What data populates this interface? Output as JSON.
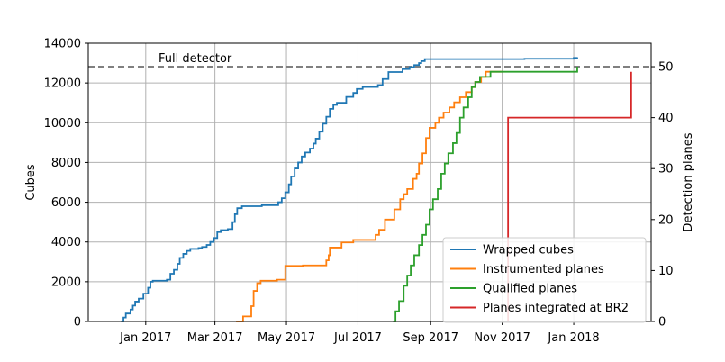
{
  "chart_data": {
    "type": "line",
    "grid": true,
    "legend_placement": "lower-right",
    "x_axis": {
      "type": "date",
      "range": [
        "2016-11-13",
        "2018-03-08"
      ],
      "ticks": [
        {
          "date": "2017-01-01",
          "label": "Jan 2017"
        },
        {
          "date": "2017-03-01",
          "label": "Mar 2017"
        },
        {
          "date": "2017-05-01",
          "label": "May 2017"
        },
        {
          "date": "2017-07-01",
          "label": "Jul 2017"
        },
        {
          "date": "2017-09-01",
          "label": "Sep 2017"
        },
        {
          "date": "2017-11-01",
          "label": "Nov 2017"
        },
        {
          "date": "2018-01-01",
          "label": "Jan 2018"
        }
      ]
    },
    "y_left": {
      "label": "Cubes",
      "range": [
        0,
        14000
      ],
      "ticks": [
        0,
        2000,
        4000,
        6000,
        8000,
        10000,
        12000,
        14000
      ]
    },
    "y_right": {
      "label": "Detection planes",
      "range": [
        0,
        54.6
      ],
      "ticks": [
        0,
        10,
        20,
        30,
        40,
        50
      ]
    },
    "reference_line": {
      "label": "Full detector",
      "axis": "right",
      "value": 50,
      "color": "#808080"
    },
    "series": [
      {
        "name": "Wrapped cubes",
        "axis": "left",
        "color": "#1f77b4",
        "points": [
          [
            "2016-12-11",
            0
          ],
          [
            "2016-12-13",
            200
          ],
          [
            "2016-12-15",
            400
          ],
          [
            "2016-12-19",
            600
          ],
          [
            "2016-12-21",
            800
          ],
          [
            "2016-12-23",
            1000
          ],
          [
            "2016-12-26",
            1150
          ],
          [
            "2016-12-30",
            1400
          ],
          [
            "2017-01-03",
            1700
          ],
          [
            "2017-01-05",
            2000
          ],
          [
            "2017-01-07",
            2050
          ],
          [
            "2017-01-19",
            2100
          ],
          [
            "2017-01-22",
            2400
          ],
          [
            "2017-01-25",
            2600
          ],
          [
            "2017-01-28",
            2900
          ],
          [
            "2017-01-30",
            3200
          ],
          [
            "2017-02-02",
            3400
          ],
          [
            "2017-02-05",
            3550
          ],
          [
            "2017-02-08",
            3650
          ],
          [
            "2017-02-15",
            3700
          ],
          [
            "2017-02-18",
            3750
          ],
          [
            "2017-02-22",
            3850
          ],
          [
            "2017-02-25",
            4000
          ],
          [
            "2017-02-28",
            4200
          ],
          [
            "2017-03-03",
            4500
          ],
          [
            "2017-03-06",
            4600
          ],
          [
            "2017-03-12",
            4650
          ],
          [
            "2017-03-16",
            5000
          ],
          [
            "2017-03-18",
            5400
          ],
          [
            "2017-03-20",
            5700
          ],
          [
            "2017-03-24",
            5800
          ],
          [
            "2017-04-10",
            5850
          ],
          [
            "2017-04-24",
            6000
          ],
          [
            "2017-04-27",
            6200
          ],
          [
            "2017-04-30",
            6500
          ],
          [
            "2017-05-03",
            6900
          ],
          [
            "2017-05-05",
            7300
          ],
          [
            "2017-05-08",
            7700
          ],
          [
            "2017-05-11",
            8000
          ],
          [
            "2017-05-14",
            8300
          ],
          [
            "2017-05-17",
            8500
          ],
          [
            "2017-05-21",
            8700
          ],
          [
            "2017-05-24",
            8950
          ],
          [
            "2017-05-26",
            9200
          ],
          [
            "2017-05-29",
            9550
          ],
          [
            "2017-06-01",
            9950
          ],
          [
            "2017-06-04",
            10300
          ],
          [
            "2017-06-07",
            10700
          ],
          [
            "2017-06-10",
            10900
          ],
          [
            "2017-06-13",
            11000
          ],
          [
            "2017-06-21",
            11300
          ],
          [
            "2017-06-27",
            11500
          ],
          [
            "2017-06-30",
            11700
          ],
          [
            "2017-07-05",
            11800
          ],
          [
            "2017-07-18",
            11900
          ],
          [
            "2017-07-22",
            12200
          ],
          [
            "2017-07-27",
            12550
          ],
          [
            "2017-08-08",
            12700
          ],
          [
            "2017-08-14",
            12800
          ],
          [
            "2017-08-18",
            12900
          ],
          [
            "2017-08-22",
            13000
          ],
          [
            "2017-08-24",
            13100
          ],
          [
            "2017-08-27",
            13200
          ],
          [
            "2017-11-20",
            13220
          ],
          [
            "2018-01-01",
            13260
          ],
          [
            "2018-01-04",
            13300
          ]
        ]
      },
      {
        "name": "Instrumented planes",
        "axis": "right",
        "color": "#ff7f0e",
        "points": [
          [
            "2017-03-19",
            0
          ],
          [
            "2017-03-25",
            1
          ],
          [
            "2017-04-01",
            3
          ],
          [
            "2017-04-03",
            6
          ],
          [
            "2017-04-06",
            7.5
          ],
          [
            "2017-04-09",
            8
          ],
          [
            "2017-04-23",
            8.2
          ],
          [
            "2017-04-30",
            10.9
          ],
          [
            "2017-05-15",
            11
          ],
          [
            "2017-06-04",
            12
          ],
          [
            "2017-06-06",
            13
          ],
          [
            "2017-06-07",
            14.5
          ],
          [
            "2017-06-17",
            15.5
          ],
          [
            "2017-06-27",
            16
          ],
          [
            "2017-07-16",
            17
          ],
          [
            "2017-07-19",
            18
          ],
          [
            "2017-07-24",
            20
          ],
          [
            "2017-08-01",
            22
          ],
          [
            "2017-08-06",
            24
          ],
          [
            "2017-08-09",
            25
          ],
          [
            "2017-08-12",
            26
          ],
          [
            "2017-08-17",
            28
          ],
          [
            "2017-08-20",
            29
          ],
          [
            "2017-08-22",
            31
          ],
          [
            "2017-08-25",
            33
          ],
          [
            "2017-08-28",
            36
          ],
          [
            "2017-08-31",
            38
          ],
          [
            "2017-09-05",
            39
          ],
          [
            "2017-09-08",
            40
          ],
          [
            "2017-09-12",
            41
          ],
          [
            "2017-09-17",
            42
          ],
          [
            "2017-09-21",
            43
          ],
          [
            "2017-09-26",
            44
          ],
          [
            "2017-10-01",
            45
          ],
          [
            "2017-10-06",
            46
          ],
          [
            "2017-10-09",
            47
          ],
          [
            "2017-10-14",
            48
          ],
          [
            "2017-10-18",
            49
          ],
          [
            "2017-11-01",
            49
          ]
        ]
      },
      {
        "name": "Qualified planes",
        "axis": "right",
        "color": "#2ca02c",
        "points": [
          [
            "2017-07-31",
            0
          ],
          [
            "2017-08-02",
            2
          ],
          [
            "2017-08-05",
            4
          ],
          [
            "2017-08-09",
            7
          ],
          [
            "2017-08-12",
            9
          ],
          [
            "2017-08-15",
            11
          ],
          [
            "2017-08-18",
            13
          ],
          [
            "2017-08-22",
            15
          ],
          [
            "2017-08-25",
            17
          ],
          [
            "2017-08-28",
            19
          ],
          [
            "2017-08-31",
            22
          ],
          [
            "2017-09-03",
            24
          ],
          [
            "2017-09-07",
            26
          ],
          [
            "2017-09-10",
            29
          ],
          [
            "2017-09-13",
            31
          ],
          [
            "2017-09-16",
            33
          ],
          [
            "2017-09-20",
            35
          ],
          [
            "2017-09-23",
            37
          ],
          [
            "2017-09-26",
            40
          ],
          [
            "2017-09-29",
            42
          ],
          [
            "2017-10-03",
            44
          ],
          [
            "2017-10-06",
            46
          ],
          [
            "2017-10-09",
            47
          ],
          [
            "2017-10-13",
            48
          ],
          [
            "2017-10-22",
            49
          ],
          [
            "2018-01-04",
            49
          ],
          [
            "2018-01-04",
            50
          ]
        ]
      },
      {
        "name": "Planes integrated at BR2",
        "axis": "right",
        "color": "#d62728",
        "points": [
          [
            "2017-11-06",
            0
          ],
          [
            "2017-11-06",
            40
          ],
          [
            "2018-02-19",
            40
          ],
          [
            "2018-02-19",
            49
          ]
        ]
      }
    ]
  }
}
